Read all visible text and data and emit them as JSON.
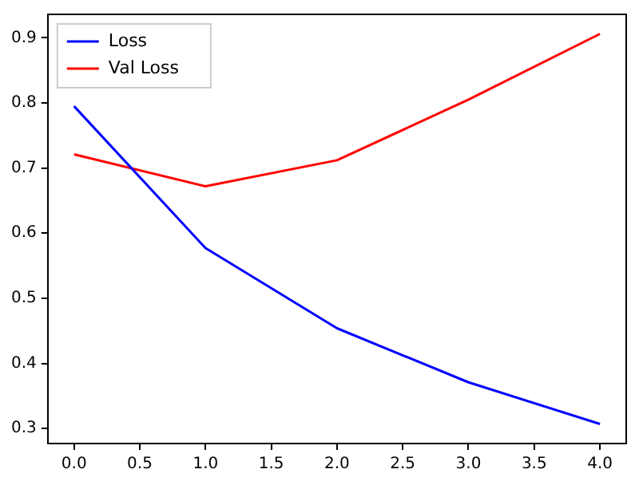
{
  "chart_data": {
    "type": "line",
    "x": [
      0,
      1,
      2,
      3,
      4
    ],
    "series": [
      {
        "name": "Loss",
        "color": "#0000ff",
        "values": [
          0.795,
          0.577,
          0.454,
          0.371,
          0.307
        ]
      },
      {
        "name": "Val Loss",
        "color": "#ff0000",
        "values": [
          0.721,
          0.672,
          0.712,
          0.805,
          0.906
        ]
      }
    ],
    "xlim": [
      -0.2,
      4.2
    ],
    "xticks": [
      {
        "value": 0,
        "label": "0.0"
      },
      0.5,
      {
        "value": 1,
        "label": "1.0"
      },
      1.5,
      {
        "value": 2,
        "label": "2.0"
      },
      2.5,
      {
        "value": 3,
        "label": "3.0"
      },
      3.5,
      {
        "value": 4,
        "label": "4.0"
      }
    ],
    "ylim": [
      0.277,
      0.936
    ],
    "yticks": [
      0.3,
      0.4,
      0.5,
      0.6,
      0.7,
      0.8,
      0.9
    ],
    "legend": "top left",
    "grid": false,
    "marker": "none",
    "line_style": "solid"
  }
}
